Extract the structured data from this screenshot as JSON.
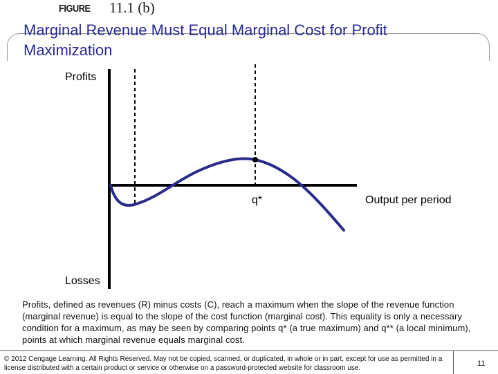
{
  "header": {
    "figure_label": "FIGURE",
    "figure_number": "11.1 (b)",
    "title": "Marginal Revenue Must Equal Marginal Cost for Profit Maximization"
  },
  "diagram": {
    "y_axis_top_label": "Profits",
    "y_axis_bottom_label": "Losses",
    "q_star_label": "q*",
    "x_axis_label": "Output per period",
    "colors": {
      "curve": "#2a2a8a",
      "axes": "#000000",
      "title": "#2a2a9a"
    }
  },
  "caption": "Profits, defined as revenues (R) minus costs (C), reach a maximum when the slope of the revenue function (marginal revenue) is equal to the slope of the cost function (marginal cost). This equality is only a necessary condition for a maximum, as may be seen by comparing points q* (a true maximum) and q** (a local minimum), points at which marginal revenue equals marginal cost.",
  "footer": {
    "copyright": "© 2012 Cengage Learning. All Rights Reserved. May not be copied, scanned, or duplicated, in whole or in part, except for use as permitted in a license distributed with a certain product or service or otherwise on a password-protected website for classroom use.",
    "page_number": "11"
  }
}
